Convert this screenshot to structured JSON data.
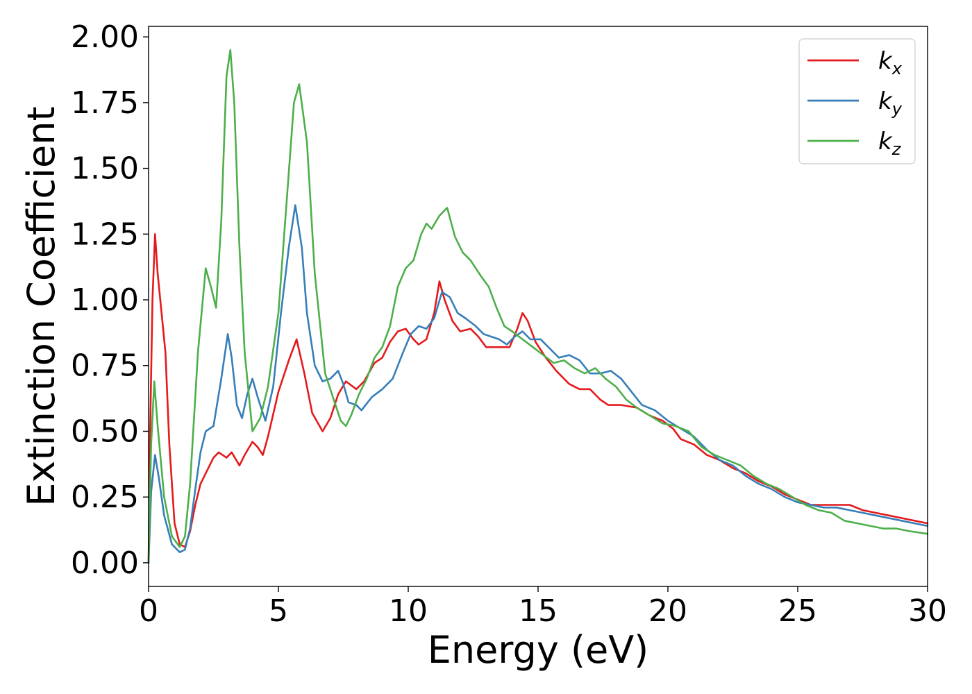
{
  "chart_data": {
    "type": "line",
    "xlabel": "Energy (eV)",
    "ylabel": "Extinction Coefficient",
    "xlim": [
      0,
      30
    ],
    "ylim": [
      -0.09,
      2.04
    ],
    "xticks": [
      0,
      5,
      10,
      15,
      20,
      25,
      30
    ],
    "xtick_labels": [
      "0",
      "5",
      "10",
      "15",
      "20",
      "25",
      "30"
    ],
    "yticks": [
      0,
      0.25,
      0.5,
      0.75,
      1.0,
      1.25,
      1.5,
      1.75,
      2.0
    ],
    "ytick_labels": [
      "0.00",
      "0.25",
      "0.50",
      "0.75",
      "1.00",
      "1.25",
      "1.50",
      "1.75",
      "2.00"
    ],
    "grid": false,
    "legend_position": "top-right",
    "series": [
      {
        "name": "k",
        "subscript": "x",
        "color": "#e41a1c",
        "points": [
          [
            0,
            0.0
          ],
          [
            0.05,
            0.45
          ],
          [
            0.15,
            1.0
          ],
          [
            0.25,
            1.25
          ],
          [
            0.35,
            1.1
          ],
          [
            0.5,
            0.95
          ],
          [
            0.65,
            0.8
          ],
          [
            0.8,
            0.45
          ],
          [
            1.0,
            0.15
          ],
          [
            1.2,
            0.07
          ],
          [
            1.4,
            0.06
          ],
          [
            1.6,
            0.12
          ],
          [
            1.8,
            0.22
          ],
          [
            2.0,
            0.3
          ],
          [
            2.2,
            0.34
          ],
          [
            2.5,
            0.4
          ],
          [
            2.7,
            0.42
          ],
          [
            3.0,
            0.4
          ],
          [
            3.2,
            0.42
          ],
          [
            3.5,
            0.37
          ],
          [
            3.7,
            0.41
          ],
          [
            4.0,
            0.46
          ],
          [
            4.2,
            0.44
          ],
          [
            4.4,
            0.41
          ],
          [
            4.6,
            0.48
          ],
          [
            5.0,
            0.65
          ],
          [
            5.4,
            0.77
          ],
          [
            5.7,
            0.85
          ],
          [
            6.0,
            0.72
          ],
          [
            6.3,
            0.57
          ],
          [
            6.7,
            0.5
          ],
          [
            7.0,
            0.55
          ],
          [
            7.3,
            0.64
          ],
          [
            7.6,
            0.69
          ],
          [
            8.0,
            0.66
          ],
          [
            8.3,
            0.69
          ],
          [
            8.7,
            0.76
          ],
          [
            9.0,
            0.78
          ],
          [
            9.3,
            0.84
          ],
          [
            9.6,
            0.88
          ],
          [
            9.9,
            0.89
          ],
          [
            10.2,
            0.85
          ],
          [
            10.4,
            0.83
          ],
          [
            10.7,
            0.85
          ],
          [
            11.0,
            0.95
          ],
          [
            11.2,
            1.07
          ],
          [
            11.4,
            1.0
          ],
          [
            11.7,
            0.92
          ],
          [
            12.0,
            0.88
          ],
          [
            12.4,
            0.89
          ],
          [
            12.7,
            0.86
          ],
          [
            13.0,
            0.82
          ],
          [
            13.5,
            0.82
          ],
          [
            13.9,
            0.82
          ],
          [
            14.2,
            0.89
          ],
          [
            14.4,
            0.95
          ],
          [
            14.6,
            0.92
          ],
          [
            14.9,
            0.84
          ],
          [
            15.3,
            0.78
          ],
          [
            15.7,
            0.73
          ],
          [
            16.2,
            0.68
          ],
          [
            16.6,
            0.66
          ],
          [
            17.0,
            0.66
          ],
          [
            17.4,
            0.62
          ],
          [
            17.7,
            0.6
          ],
          [
            18.2,
            0.6
          ],
          [
            18.8,
            0.59
          ],
          [
            19.3,
            0.56
          ],
          [
            19.8,
            0.54
          ],
          [
            20.2,
            0.51
          ],
          [
            20.5,
            0.47
          ],
          [
            21.0,
            0.45
          ],
          [
            21.5,
            0.41
          ],
          [
            22.0,
            0.39
          ],
          [
            22.5,
            0.36
          ],
          [
            23.0,
            0.34
          ],
          [
            23.5,
            0.31
          ],
          [
            24.0,
            0.29
          ],
          [
            24.5,
            0.26
          ],
          [
            25.0,
            0.24
          ],
          [
            25.5,
            0.22
          ],
          [
            26.0,
            0.22
          ],
          [
            26.5,
            0.22
          ],
          [
            27.0,
            0.22
          ],
          [
            27.5,
            0.2
          ],
          [
            28.0,
            0.19
          ],
          [
            28.5,
            0.18
          ],
          [
            29.0,
            0.17
          ],
          [
            29.5,
            0.16
          ],
          [
            30.0,
            0.15
          ]
        ]
      },
      {
        "name": "k",
        "subscript": "y",
        "color": "#377eb8",
        "points": [
          [
            0,
            0.0
          ],
          [
            0.1,
            0.27
          ],
          [
            0.25,
            0.41
          ],
          [
            0.4,
            0.32
          ],
          [
            0.6,
            0.18
          ],
          [
            0.9,
            0.07
          ],
          [
            1.2,
            0.04
          ],
          [
            1.4,
            0.05
          ],
          [
            1.6,
            0.13
          ],
          [
            1.8,
            0.28
          ],
          [
            2.0,
            0.42
          ],
          [
            2.2,
            0.5
          ],
          [
            2.5,
            0.52
          ],
          [
            2.8,
            0.7
          ],
          [
            3.05,
            0.87
          ],
          [
            3.2,
            0.78
          ],
          [
            3.4,
            0.6
          ],
          [
            3.6,
            0.55
          ],
          [
            3.8,
            0.64
          ],
          [
            4.0,
            0.7
          ],
          [
            4.2,
            0.63
          ],
          [
            4.5,
            0.54
          ],
          [
            4.8,
            0.67
          ],
          [
            5.1,
            0.95
          ],
          [
            5.4,
            1.2
          ],
          [
            5.65,
            1.36
          ],
          [
            5.9,
            1.2
          ],
          [
            6.1,
            0.95
          ],
          [
            6.4,
            0.75
          ],
          [
            6.7,
            0.69
          ],
          [
            7.0,
            0.7
          ],
          [
            7.3,
            0.73
          ],
          [
            7.5,
            0.68
          ],
          [
            7.7,
            0.61
          ],
          [
            8.0,
            0.6
          ],
          [
            8.2,
            0.58
          ],
          [
            8.6,
            0.63
          ],
          [
            9.0,
            0.66
          ],
          [
            9.4,
            0.7
          ],
          [
            9.8,
            0.8
          ],
          [
            10.1,
            0.87
          ],
          [
            10.4,
            0.9
          ],
          [
            10.7,
            0.89
          ],
          [
            11.0,
            0.93
          ],
          [
            11.3,
            1.03
          ],
          [
            11.6,
            1.01
          ],
          [
            11.9,
            0.95
          ],
          [
            12.2,
            0.93
          ],
          [
            12.6,
            0.9
          ],
          [
            12.9,
            0.87
          ],
          [
            13.2,
            0.86
          ],
          [
            13.5,
            0.85
          ],
          [
            13.8,
            0.83
          ],
          [
            14.1,
            0.86
          ],
          [
            14.4,
            0.88
          ],
          [
            14.7,
            0.85
          ],
          [
            15.1,
            0.85
          ],
          [
            15.5,
            0.81
          ],
          [
            15.8,
            0.78
          ],
          [
            16.2,
            0.79
          ],
          [
            16.6,
            0.77
          ],
          [
            17.0,
            0.72
          ],
          [
            17.4,
            0.72
          ],
          [
            17.8,
            0.73
          ],
          [
            18.2,
            0.7
          ],
          [
            18.6,
            0.65
          ],
          [
            19.0,
            0.6
          ],
          [
            19.5,
            0.58
          ],
          [
            20.0,
            0.54
          ],
          [
            20.5,
            0.51
          ],
          [
            21.0,
            0.48
          ],
          [
            21.5,
            0.43
          ],
          [
            22.0,
            0.39
          ],
          [
            22.5,
            0.37
          ],
          [
            23.0,
            0.33
          ],
          [
            23.5,
            0.3
          ],
          [
            24.0,
            0.28
          ],
          [
            24.5,
            0.25
          ],
          [
            25.0,
            0.23
          ],
          [
            25.5,
            0.22
          ],
          [
            26.0,
            0.21
          ],
          [
            26.5,
            0.21
          ],
          [
            27.0,
            0.2
          ],
          [
            27.5,
            0.19
          ],
          [
            28.0,
            0.18
          ],
          [
            28.5,
            0.17
          ],
          [
            29.0,
            0.16
          ],
          [
            29.5,
            0.15
          ],
          [
            30.0,
            0.14
          ]
        ]
      },
      {
        "name": "k",
        "subscript": "z",
        "color": "#4daf4a",
        "points": [
          [
            0,
            0.0
          ],
          [
            0.1,
            0.45
          ],
          [
            0.22,
            0.69
          ],
          [
            0.35,
            0.52
          ],
          [
            0.6,
            0.25
          ],
          [
            0.9,
            0.1
          ],
          [
            1.2,
            0.06
          ],
          [
            1.4,
            0.1
          ],
          [
            1.6,
            0.3
          ],
          [
            1.9,
            0.8
          ],
          [
            2.2,
            1.12
          ],
          [
            2.4,
            1.05
          ],
          [
            2.6,
            0.97
          ],
          [
            2.8,
            1.3
          ],
          [
            3.0,
            1.85
          ],
          [
            3.15,
            1.95
          ],
          [
            3.3,
            1.75
          ],
          [
            3.5,
            1.2
          ],
          [
            3.7,
            0.8
          ],
          [
            4.0,
            0.5
          ],
          [
            4.3,
            0.55
          ],
          [
            4.6,
            0.67
          ],
          [
            5.0,
            0.95
          ],
          [
            5.3,
            1.35
          ],
          [
            5.6,
            1.75
          ],
          [
            5.8,
            1.82
          ],
          [
            6.1,
            1.6
          ],
          [
            6.4,
            1.1
          ],
          [
            6.8,
            0.72
          ],
          [
            7.1,
            0.63
          ],
          [
            7.4,
            0.54
          ],
          [
            7.6,
            0.52
          ],
          [
            7.8,
            0.56
          ],
          [
            8.1,
            0.64
          ],
          [
            8.4,
            0.7
          ],
          [
            8.7,
            0.78
          ],
          [
            9.0,
            0.82
          ],
          [
            9.3,
            0.9
          ],
          [
            9.6,
            1.05
          ],
          [
            9.9,
            1.12
          ],
          [
            10.2,
            1.15
          ],
          [
            10.5,
            1.25
          ],
          [
            10.7,
            1.29
          ],
          [
            10.9,
            1.27
          ],
          [
            11.2,
            1.32
          ],
          [
            11.5,
            1.35
          ],
          [
            11.8,
            1.24
          ],
          [
            12.1,
            1.18
          ],
          [
            12.4,
            1.15
          ],
          [
            12.8,
            1.09
          ],
          [
            13.1,
            1.05
          ],
          [
            13.4,
            0.97
          ],
          [
            13.7,
            0.9
          ],
          [
            14.0,
            0.88
          ],
          [
            14.4,
            0.85
          ],
          [
            14.8,
            0.82
          ],
          [
            15.2,
            0.79
          ],
          [
            15.6,
            0.76
          ],
          [
            16.0,
            0.77
          ],
          [
            16.4,
            0.74
          ],
          [
            16.8,
            0.72
          ],
          [
            17.2,
            0.74
          ],
          [
            17.6,
            0.7
          ],
          [
            18.0,
            0.67
          ],
          [
            18.4,
            0.62
          ],
          [
            18.8,
            0.59
          ],
          [
            19.3,
            0.56
          ],
          [
            19.8,
            0.53
          ],
          [
            20.3,
            0.52
          ],
          [
            20.8,
            0.5
          ],
          [
            21.3,
            0.44
          ],
          [
            21.8,
            0.41
          ],
          [
            22.3,
            0.39
          ],
          [
            22.8,
            0.37
          ],
          [
            23.3,
            0.33
          ],
          [
            23.8,
            0.3
          ],
          [
            24.3,
            0.28
          ],
          [
            24.8,
            0.25
          ],
          [
            25.3,
            0.22
          ],
          [
            25.8,
            0.2
          ],
          [
            26.3,
            0.19
          ],
          [
            26.8,
            0.16
          ],
          [
            27.3,
            0.15
          ],
          [
            27.8,
            0.14
          ],
          [
            28.3,
            0.13
          ],
          [
            28.8,
            0.13
          ],
          [
            29.3,
            0.12
          ],
          [
            30.0,
            0.11
          ]
        ]
      }
    ]
  }
}
